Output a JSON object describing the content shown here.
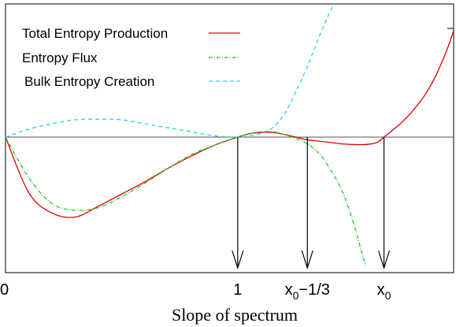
{
  "chart_data": {
    "type": "line",
    "title": "",
    "xlabel": "Slope of spectrum",
    "ylabel": "",
    "xlim": [
      0,
      1.93
    ],
    "ylim": [
      -1.0,
      1.0
    ],
    "grid": false,
    "legend_position": "top-left",
    "x_ticks": [
      {
        "label": "0",
        "x": 0
      },
      {
        "label": "1",
        "x": 1
      },
      {
        "label": "x",
        "sub": "0",
        "suffix": "−1/3",
        "x": 1.3
      },
      {
        "label": "x",
        "sub": "0",
        "x": 1.63
      }
    ],
    "annotations": [
      {
        "type": "arrow-down",
        "x": 1
      },
      {
        "type": "arrow-down",
        "x": 1.3
      },
      {
        "type": "arrow-down",
        "x": 1.63
      }
    ],
    "series": [
      {
        "name": "Total Entropy Production",
        "color": "#e00000",
        "dash": "solid",
        "x": [
          0,
          0.1,
          0.2,
          0.3,
          0.4,
          0.5,
          0.6,
          0.7,
          0.8,
          0.9,
          1.0,
          1.05,
          1.1,
          1.15,
          1.2,
          1.25,
          1.3,
          1.35,
          1.4,
          1.45,
          1.5,
          1.55,
          1.6,
          1.63,
          1.7,
          1.75,
          1.8,
          1.85,
          1.9,
          1.93
        ],
        "y": [
          0,
          -0.41,
          -0.56,
          -0.59,
          -0.51,
          -0.42,
          -0.33,
          -0.23,
          -0.14,
          -0.06,
          0,
          0.025,
          0.035,
          0.035,
          0.02,
          0.0,
          -0.02,
          -0.03,
          -0.04,
          -0.05,
          -0.055,
          -0.055,
          -0.04,
          0,
          0.1,
          0.19,
          0.3,
          0.45,
          0.65,
          0.8
        ]
      },
      {
        "name": "Entropy Flux",
        "color": "#22c822",
        "dash": "dash-dot",
        "x": [
          0,
          0.1,
          0.2,
          0.3,
          0.4,
          0.5,
          0.6,
          0.7,
          0.8,
          0.9,
          1.0,
          1.05,
          1.1,
          1.15,
          1.2,
          1.25,
          1.3,
          1.35,
          1.4,
          1.45,
          1.5,
          1.55
        ],
        "y": [
          0,
          -0.3,
          -0.49,
          -0.54,
          -0.52,
          -0.44,
          -0.34,
          -0.23,
          -0.13,
          -0.06,
          0,
          0.025,
          0.04,
          0.04,
          0.02,
          -0.01,
          -0.05,
          -0.12,
          -0.24,
          -0.4,
          -0.64,
          -0.95
        ]
      },
      {
        "name": "Bulk Entropy Creation",
        "color": "#22d4e0",
        "dash": "dashed",
        "x": [
          0,
          0.1,
          0.2,
          0.3,
          0.4,
          0.5,
          0.6,
          0.7,
          0.8,
          0.9,
          1.0,
          1.05,
          1.1,
          1.15,
          1.2,
          1.25,
          1.3,
          1.35,
          1.4,
          1.42
        ],
        "y": [
          0,
          0.06,
          0.1,
          0.13,
          0.135,
          0.13,
          0.1,
          0.07,
          0.04,
          0.01,
          0,
          0.01,
          0.03,
          0.07,
          0.17,
          0.34,
          0.53,
          0.75,
          0.95,
          1.0
        ]
      }
    ]
  }
}
